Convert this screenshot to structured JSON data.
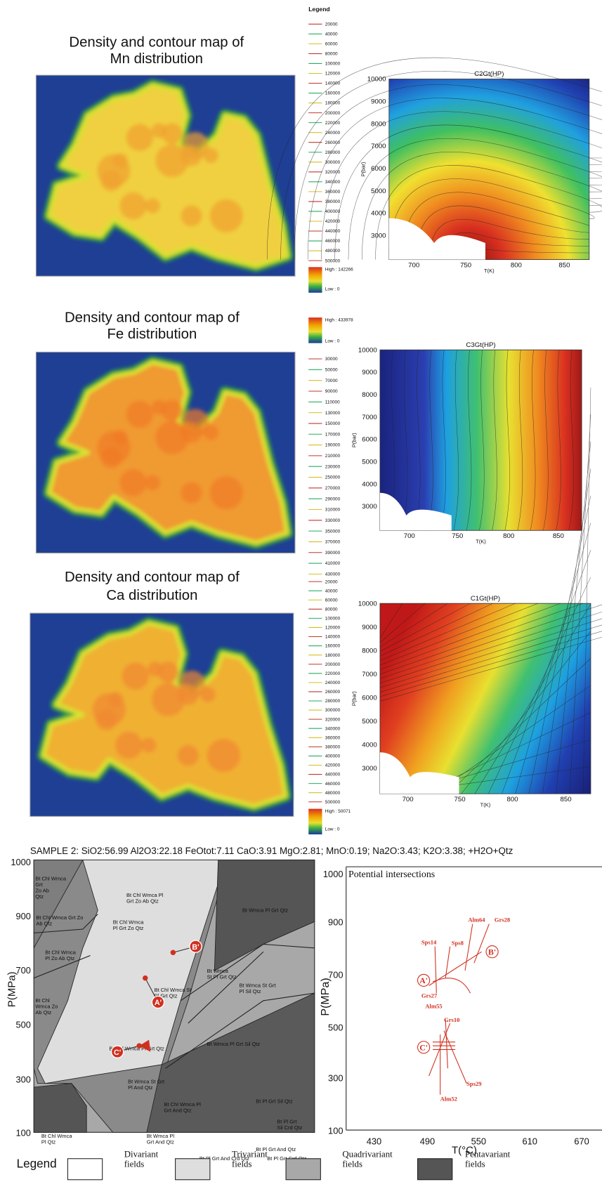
{
  "legend_title": "Legend",
  "maps": [
    {
      "title_lines": [
        "Density and contour map of",
        "Mn distribution"
      ],
      "legend_values": [
        20000,
        40000,
        60000,
        80000,
        100000,
        120000,
        140000,
        160000,
        180000,
        200000,
        220000,
        240000,
        260000,
        280000,
        300000,
        320000,
        340000,
        360000,
        380000,
        400000,
        420000,
        440000,
        460000,
        480000,
        500000
      ],
      "high": "High : 142266",
      "low": "Low : 0"
    },
    {
      "title_lines": [
        "Density and contour map of",
        "Fe distribution"
      ],
      "legend_values": [
        30000,
        50000,
        70000,
        90000,
        110000,
        130000,
        150000,
        170000,
        190000,
        210000,
        230000,
        250000,
        270000,
        290000,
        310000,
        330000,
        350000,
        370000,
        390000,
        410000,
        430000
      ],
      "high": "High : 433978",
      "low": "Low : 0"
    },
    {
      "title_lines": [
        "Density and contour map of",
        "Ca distribution"
      ],
      "legend_values": [
        20000,
        40000,
        60000,
        80000,
        100000,
        120000,
        140000,
        160000,
        180000,
        200000,
        220000,
        240000,
        260000,
        280000,
        300000,
        320000,
        340000,
        360000,
        380000,
        400000,
        420000,
        440000,
        460000,
        480000,
        500000
      ],
      "high": "High : 50071",
      "low": "Low : 0"
    }
  ],
  "contours": [
    {
      "title": "C2Gt(HP)",
      "ylabel": "P(bar)",
      "xlabel": "T(K)",
      "yticks": [
        10000,
        9000,
        8000,
        7000,
        6000,
        5000,
        4000,
        3000
      ],
      "xticks": [
        700,
        750,
        800,
        850
      ]
    },
    {
      "title": "C3Gt(HP)",
      "ylabel": "P(bar)",
      "xlabel": "T(K)",
      "yticks": [
        10000,
        9000,
        8000,
        7000,
        6000,
        5000,
        4000,
        3000
      ],
      "xticks": [
        700,
        750,
        800,
        850
      ]
    },
    {
      "title": "C1Gt(HP)",
      "ylabel": "P(bar)",
      "xlabel": "T(K)",
      "yticks": [
        10000,
        9000,
        8000,
        7000,
        6000,
        5000,
        4000,
        3000
      ],
      "xticks": [
        700,
        750,
        800,
        850
      ]
    }
  ],
  "sample_line": "SAMPLE 2:  SiO2:56.99  Al2O3:22.18  FeOtot:7.11  CaO:3.91  MgO:2.81; MnO:0.19; Na2O:3.43; K2O:3.38; +H2O+Qtz",
  "phase_diagram": {
    "ylabel": "P(MPa)",
    "yticks": [
      1000,
      900,
      700,
      500,
      300,
      100
    ],
    "field_labels": [
      [
        "Bt Chl Wmca",
        "Grt",
        "Zo Ab",
        "Qtz"
      ],
      [
        "Bt Chl Wmca Grt Zo",
        "Ab Qtz"
      ],
      [
        "Bt Chl Wmca Pl",
        "Grt Zo Ab Qtz"
      ],
      [
        "Bt Chl Wmca",
        "Pl Grt Zo Qtz"
      ],
      [
        "Bt Wmca Pl Grt Qtz"
      ],
      [
        "Bt Chl Wmca",
        "Pl Zo Ab Qtz"
      ],
      [
        "Bt Chl",
        "Wmca Zo",
        "Ab Qtz"
      ],
      [
        "Bt Wmca",
        "St Pl Grt Qtz"
      ],
      [
        "Bt Chl Wmca St",
        "Pl Grt Qtz"
      ],
      [
        "Bt Wmca St Grt",
        "Pl Sil Qtz"
      ],
      [
        "Bt Chl Wmca Pl Grt Qtz"
      ],
      [
        "Bt Wmca Pl Grt Sil Qtz"
      ],
      [
        "Bt Wmca St Grt",
        "Pl And Qtz"
      ],
      [
        "Bt Chl Wmca Pl",
        "Grt And Qtz"
      ],
      [
        "Bt Pl Grt Sil Qtz"
      ],
      [
        "Bt Pl Grt",
        "Sil Crd Qtz"
      ],
      [
        "Bt Chl Wmca",
        "Pl Qtz"
      ],
      [
        "Bt Wmca Pl",
        "Grt And Qtz"
      ],
      [
        "Bt Pl Grt And Qtz"
      ],
      [
        "Bt Pl Grt And Crd Qtz"
      ],
      [
        "Bt Pl Grt Crd Qtz"
      ]
    ],
    "points": [
      "A'",
      "B'",
      "C'"
    ]
  },
  "intersections": {
    "title": "Potential intersections",
    "ylabel": "P(MPa)",
    "xlabel": "T(°C)",
    "yticks": [
      1000,
      900,
      700,
      500,
      300,
      100
    ],
    "xticks": [
      430,
      490,
      550,
      610,
      670
    ],
    "labels": [
      "Sps14",
      "Sps8",
      "Alm64",
      "Grs28",
      "B'",
      "A'",
      "Grs27",
      "Alm55",
      "Grs10",
      "C'",
      "Sps29",
      "Alm52"
    ]
  },
  "field_legend": {
    "title": "Legend",
    "items": [
      [
        "Divariant",
        "fields"
      ],
      [
        "Trivariant",
        "fields"
      ],
      [
        "Quadrivariant",
        "fields"
      ],
      [
        "Pentavariant",
        "fields"
      ]
    ]
  }
}
